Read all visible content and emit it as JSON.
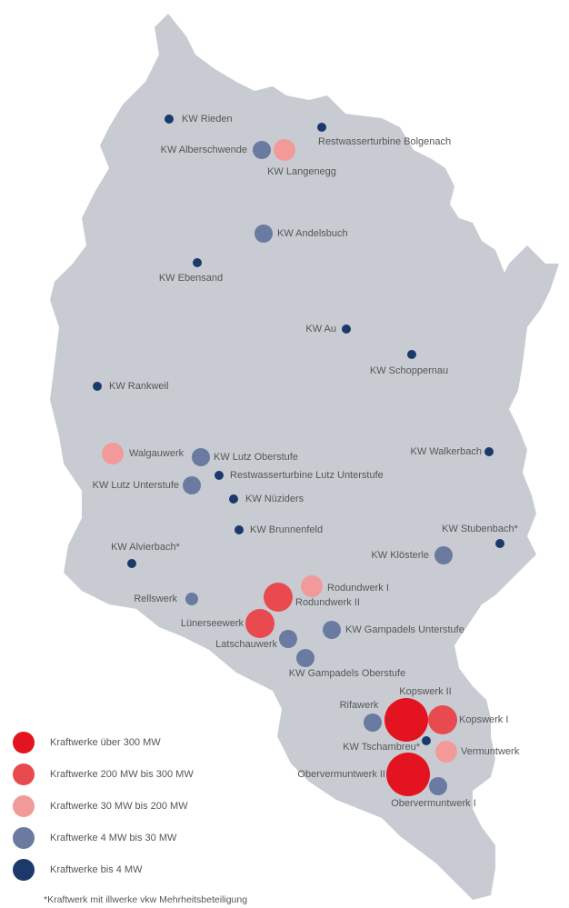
{
  "legend": [
    {
      "label": "Kraftwerke über 300 MW",
      "color": "#e3141f",
      "plants": [
        "Kopswerk II",
        "Obervermuntwerk II"
      ]
    },
    {
      "label": "Kraftwerke 200 MW bis 300 MW",
      "color": "#e84a4f",
      "plants": [
        "Rodundwerk II",
        "Lünerseewerk",
        "Kopswerk I"
      ]
    },
    {
      "label": "Kraftwerke 30 MW bis 200 MW",
      "color": "#f29a9a",
      "plants": [
        "KW Langenegg",
        "Walgauwerk",
        "Rodundwerk I",
        "Vermuntwerk"
      ]
    },
    {
      "label": "Kraftwerke 4 MW bis 30 MW",
      "color": "#6a7aa0",
      "plants": [
        "KW Alberschwende",
        "KW Andelsbuch",
        "KW Lutz Oberstufe",
        "KW Lutz Unterstufe",
        "KW Klösterle",
        "Rellswerk",
        "Latschauwerk",
        "KW Gampadels Unterstufe",
        "KW Gampadels Oberstufe",
        "Rifawerk",
        "Obervermuntwerk I"
      ]
    },
    {
      "label": "Kraftwerke bis 4 MW",
      "color": "#1b3a6b",
      "plants": [
        "KW Rieden",
        "Restwasserturbine Bolgenach",
        "KW Ebensand",
        "KW Au",
        "KW Schoppernau",
        "KW Rankweil",
        "Restwasserturbine Lutz Unterstufe",
        "KW Nüziders",
        "KW Brunnenfeld",
        "KW Alvierbach*",
        "KW Walkerbach",
        "KW Stubenbach*",
        "KW Tschambreu*"
      ]
    }
  ],
  "footnote": "*Kraftwerk mit illwerke vkw Mehrheitsbeteiligung"
}
